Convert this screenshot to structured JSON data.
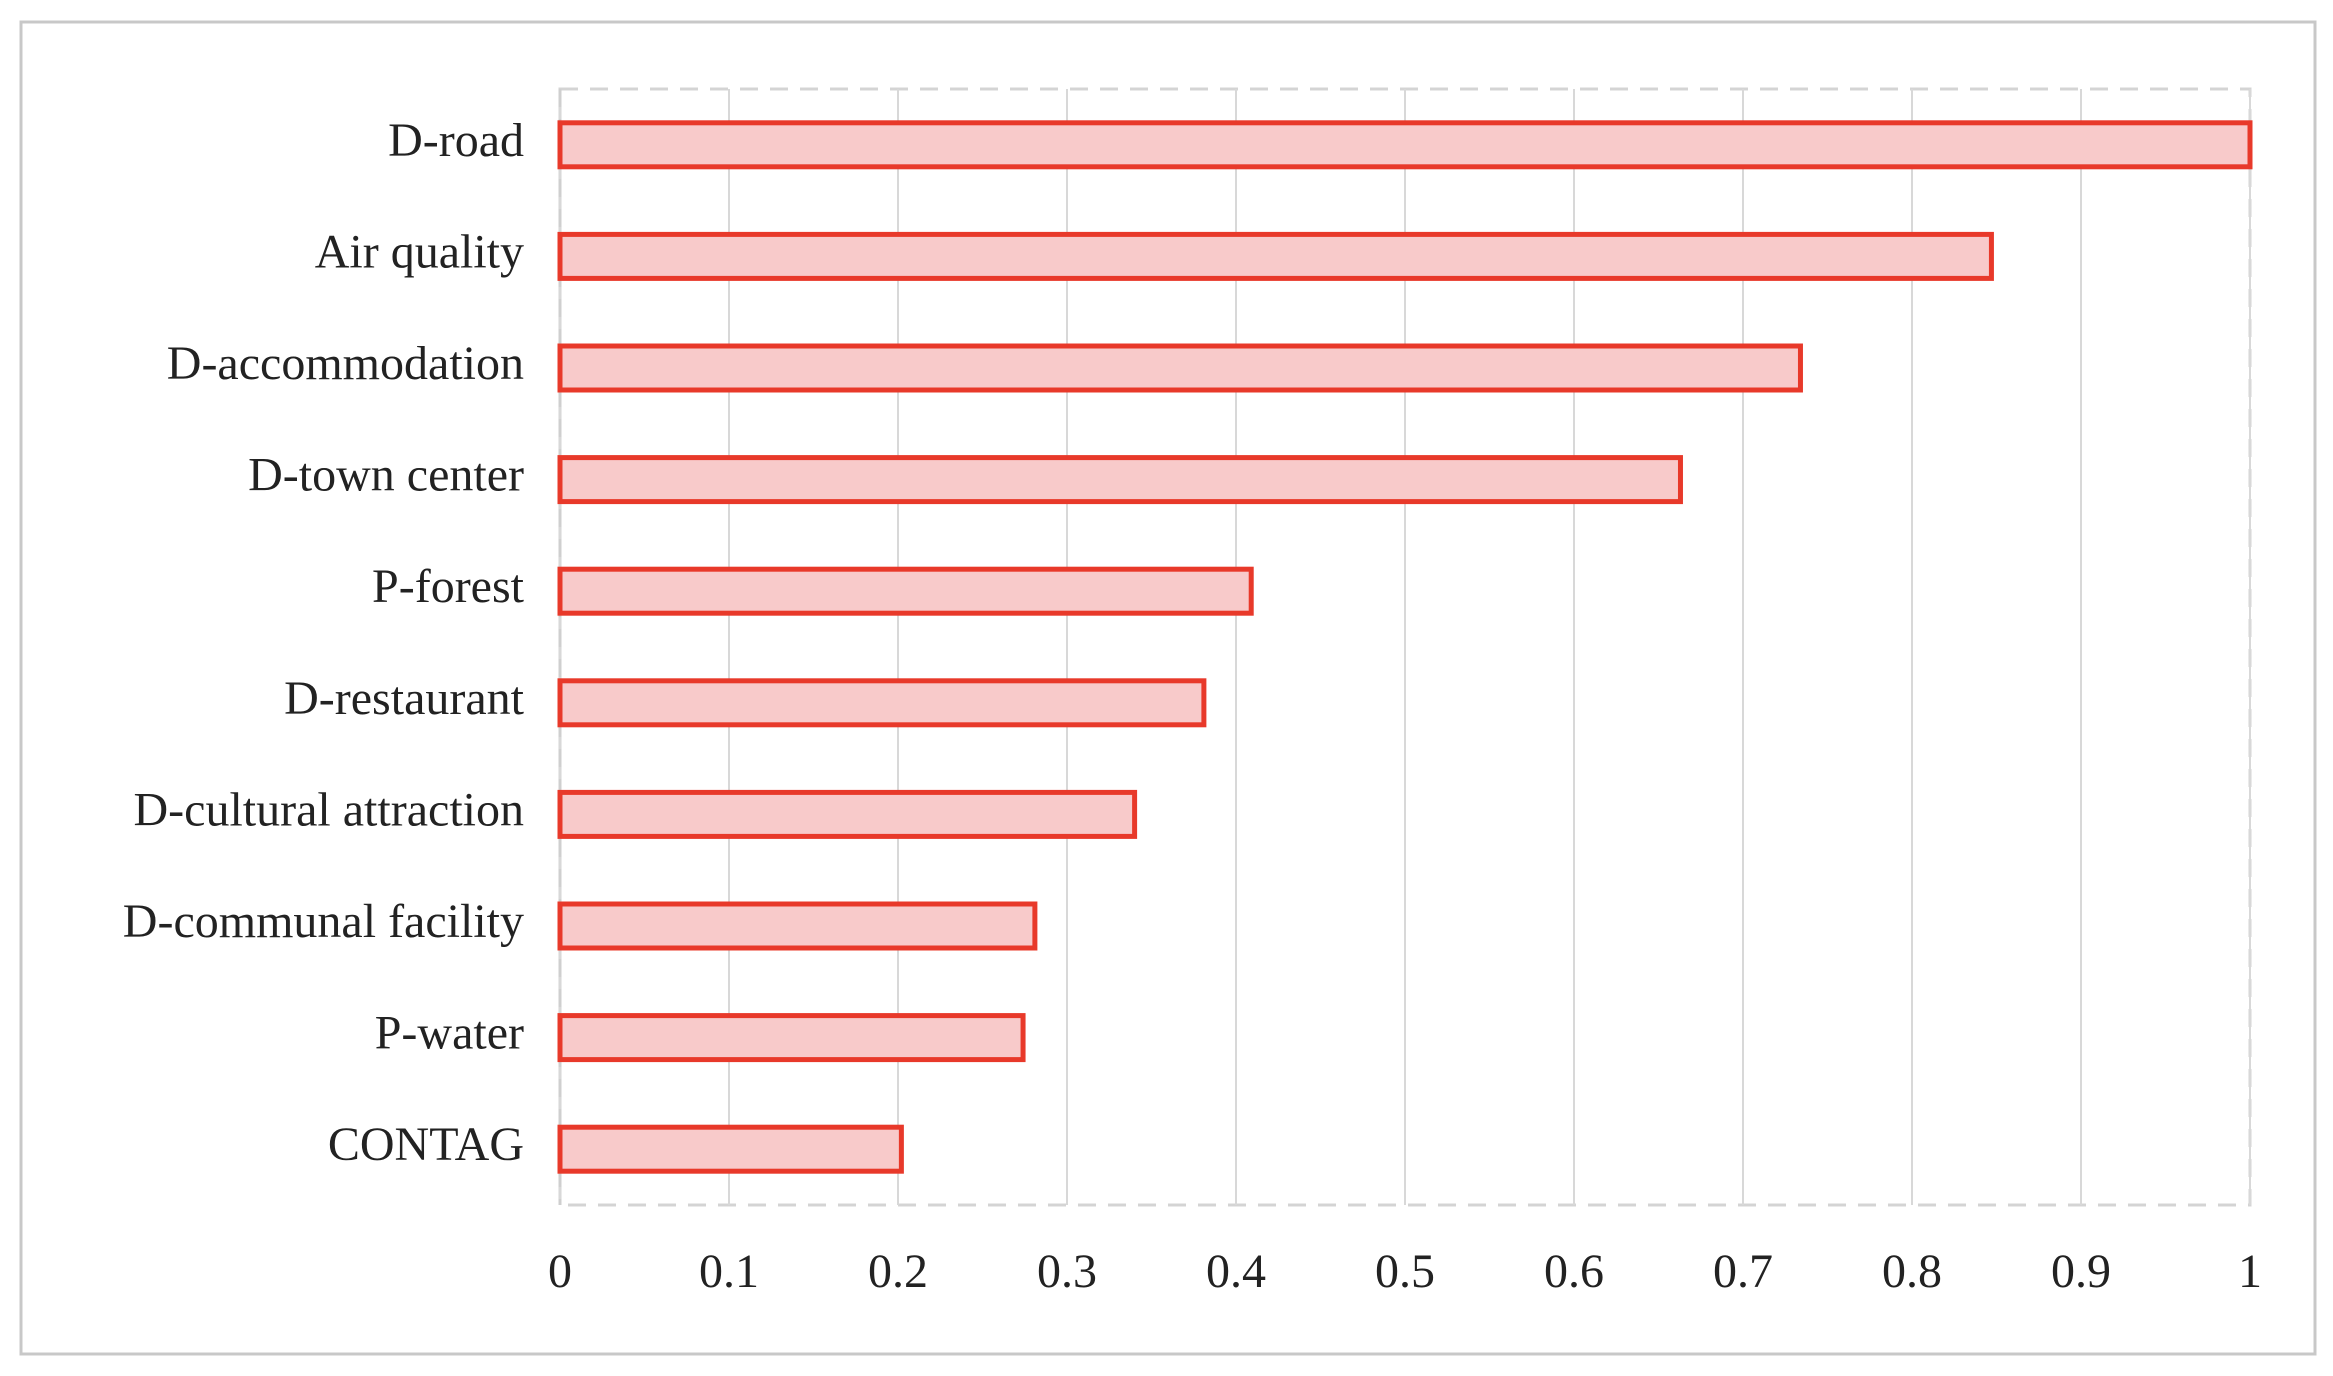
{
  "chart_data": {
    "type": "bar",
    "orientation": "horizontal",
    "categories": [
      "D-road",
      "Air quality",
      "D-accommodation",
      "D-town center",
      "P-forest",
      "D-restaurant",
      "D-cultural attraction",
      "D-communal facility",
      "P-water",
      "CONTAG"
    ],
    "values": [
      1.0,
      0.847,
      0.734,
      0.663,
      0.409,
      0.381,
      0.34,
      0.281,
      0.274,
      0.202
    ],
    "color": "#f8caca",
    "edge_color": "#e8392a",
    "xlim": [
      0,
      1
    ],
    "xticks": [
      0,
      0.1,
      0.2,
      0.3,
      0.4,
      0.5,
      0.6,
      0.7,
      0.8,
      0.9,
      1
    ],
    "grid": true
  }
}
